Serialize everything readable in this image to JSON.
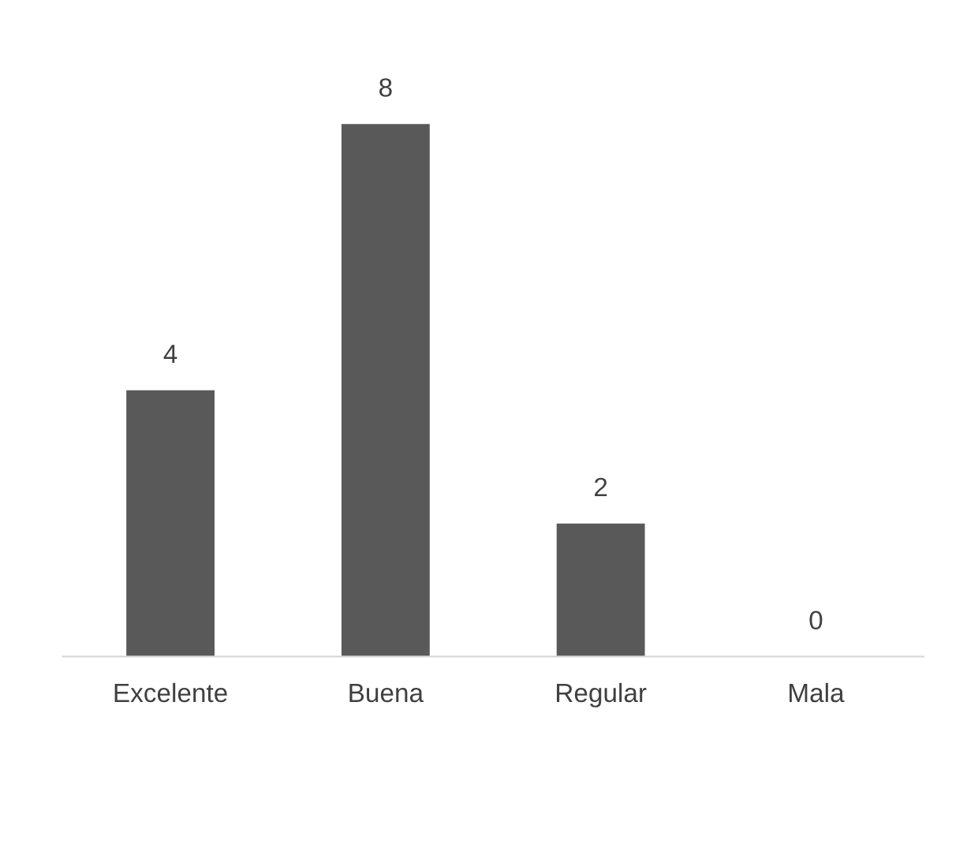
{
  "chart_data": {
    "type": "bar",
    "categories": [
      "Excelente",
      "Buena",
      "Regular",
      "Mala"
    ],
    "values": [
      4,
      8,
      2,
      0
    ],
    "color": "#595959",
    "data_labels": true,
    "grid": false,
    "legend": false
  }
}
